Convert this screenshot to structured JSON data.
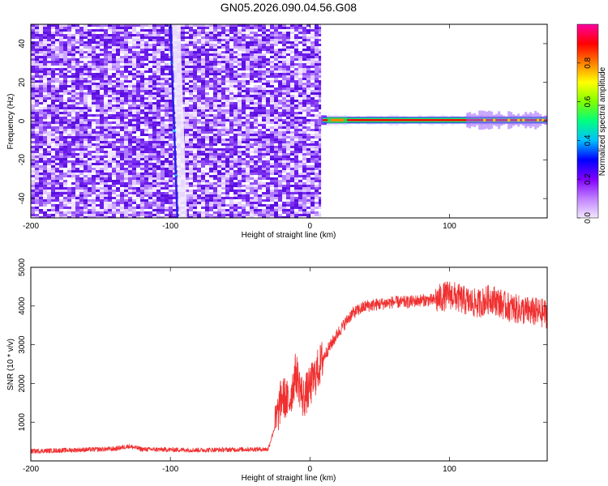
{
  "title": "GN05.2026.090.04.56.G08",
  "chart_data": [
    {
      "type": "heatmap",
      "xlabel": "Height of straight line (km)",
      "ylabel": "Frequency (Hz)",
      "xlim": [
        -200,
        170
      ],
      "ylim": [
        -50,
        50
      ],
      "xticks": [
        -200,
        -100,
        0,
        100
      ],
      "yticks": [
        -40,
        -20,
        0,
        20,
        40
      ],
      "grid": false,
      "noise_region_x": [
        -200,
        8
      ],
      "diagonal_line": {
        "x_at_ymin": -95,
        "x_at_ymax": -100
      },
      "signal_line": {
        "y": 0.5,
        "x_start": 8,
        "x_end": 170,
        "color": "#ff0000"
      },
      "colorbar": {
        "label": "Normalized spectral amplitude",
        "range": [
          0,
          1
        ],
        "ticks": [
          "0.0",
          "0.2",
          "0.4",
          "0.6",
          "0.8"
        ],
        "colors": [
          "#f2e8ff",
          "#c080ff",
          "#8000ff",
          "#0000ff",
          "#00bfff",
          "#00ff80",
          "#80ff00",
          "#ffff00",
          "#ff8000",
          "#ff0000",
          "#ff00a0"
        ]
      }
    },
    {
      "type": "line",
      "xlabel": "Height of straight line (km)",
      "ylabel": "SNR (10 * v/v)",
      "xlim": [
        -200,
        170
      ],
      "ylim": [
        0,
        5000
      ],
      "xticks": [
        -200,
        -100,
        0,
        100
      ],
      "yticks": [
        1000,
        2000,
        3000,
        4000,
        5000
      ],
      "grid": false,
      "series": [
        {
          "color": "#f03030",
          "x": [
            -200,
            -180,
            -160,
            -140,
            -130,
            -120,
            -100,
            -80,
            -60,
            -40,
            -30,
            -25,
            -20,
            -15,
            -10,
            -5,
            0,
            5,
            10,
            20,
            30,
            40,
            50,
            60,
            70,
            80,
            90,
            100,
            110,
            120,
            130,
            140,
            150,
            160,
            170
          ],
          "y": [
            250,
            270,
            290,
            310,
            380,
            300,
            290,
            280,
            290,
            300,
            300,
            900,
            1700,
            1500,
            2300,
            1600,
            1900,
            2300,
            2700,
            3300,
            3800,
            4000,
            4050,
            4100,
            4100,
            4150,
            4150,
            4300,
            4150,
            4050,
            4200,
            4000,
            3900,
            3850,
            3800
          ]
        }
      ]
    }
  ]
}
